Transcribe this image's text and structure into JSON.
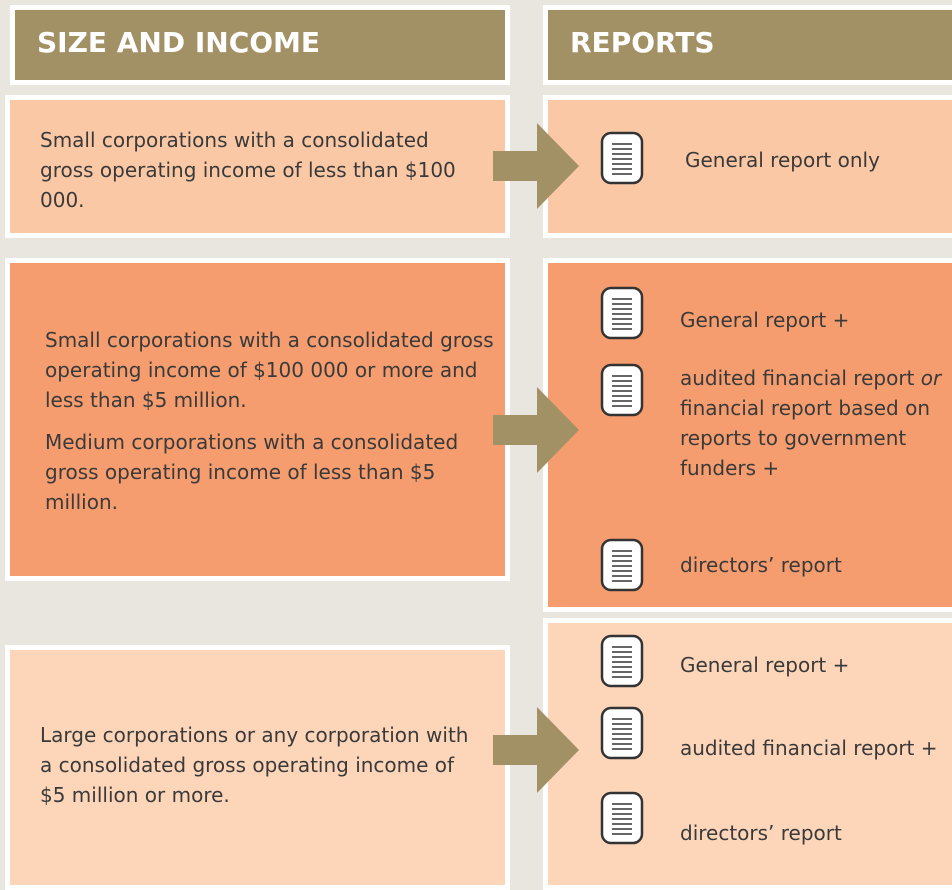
{
  "headers": {
    "left": "SIZE AND INCOME",
    "right": "REPORTS"
  },
  "rows": [
    {
      "left": [
        "Small corporations with a consolidated gross operating income of less than $100 000."
      ],
      "right": [
        [
          "General report only"
        ]
      ]
    },
    {
      "left": [
        "Small corporations with a consolidated gross operating income of $100 000 or more and less than $5 million.",
        "Medium corporations with a consolidated gross operating income of less than $5 million."
      ],
      "right": [
        [
          "General report +"
        ],
        [
          "audited financial report ",
          "or",
          " financial report based on reports to government funders +"
        ],
        [
          "directors’ report"
        ]
      ]
    },
    {
      "left": [
        "Large corporations or any corporation with a consolidated gross operating income of $5 million or more."
      ],
      "right": [
        [
          "General report +"
        ],
        [
          "audited financial report +"
        ],
        [
          "directors’ report"
        ]
      ]
    }
  ]
}
